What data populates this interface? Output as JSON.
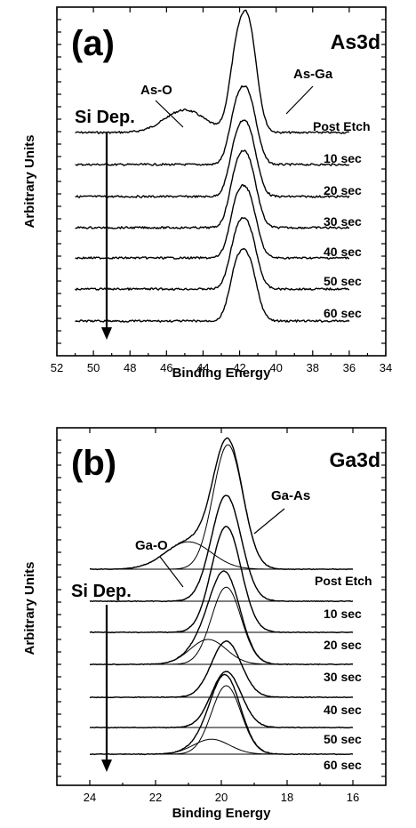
{
  "chart_data": [
    {
      "type": "line",
      "panel_label": "(a)",
      "element_label": "As3d",
      "xlabel": "Binding Energy",
      "ylabel": "Arbitrary Units",
      "xlim": [
        52,
        34
      ],
      "x_ticks": [
        52,
        50,
        48,
        46,
        44,
        42,
        40,
        38,
        36,
        34
      ],
      "grid": false,
      "x_range_data": [
        51,
        36
      ],
      "annotations": [
        {
          "text": "As-O",
          "target_x": 45.0
        },
        {
          "text": "As-Ga",
          "target_x": 41.0
        }
      ],
      "deposition_label": "Si Dep.",
      "series": [
        {
          "name": "Post Etch",
          "peaks": [
            {
              "center": 41.5,
              "height": 1.0,
              "width": 0.45
            },
            {
              "center": 42.2,
              "height": 0.62,
              "width": 0.4
            },
            {
              "center": 45.0,
              "height": 0.22,
              "width": 1.1
            }
          ]
        },
        {
          "name": "10 sec",
          "peaks": [
            {
              "center": 41.5,
              "height": 0.62,
              "width": 0.45
            },
            {
              "center": 42.2,
              "height": 0.45,
              "width": 0.4
            }
          ]
        },
        {
          "name": "20 sec",
          "peaks": [
            {
              "center": 41.5,
              "height": 0.6,
              "width": 0.45
            },
            {
              "center": 42.2,
              "height": 0.44,
              "width": 0.4
            }
          ]
        },
        {
          "name": "30 sec",
          "peaks": [
            {
              "center": 41.5,
              "height": 0.6,
              "width": 0.45
            },
            {
              "center": 42.2,
              "height": 0.45,
              "width": 0.4
            }
          ]
        },
        {
          "name": "40 sec",
          "peaks": [
            {
              "center": 41.5,
              "height": 0.56,
              "width": 0.45
            },
            {
              "center": 42.2,
              "height": 0.43,
              "width": 0.4
            }
          ]
        },
        {
          "name": "50 sec",
          "peaks": [
            {
              "center": 41.5,
              "height": 0.55,
              "width": 0.45
            },
            {
              "center": 42.2,
              "height": 0.42,
              "width": 0.4
            }
          ]
        },
        {
          "name": "60 sec",
          "peaks": [
            {
              "center": 41.5,
              "height": 0.55,
              "width": 0.45
            },
            {
              "center": 42.2,
              "height": 0.43,
              "width": 0.4
            }
          ]
        }
      ]
    },
    {
      "type": "line",
      "panel_label": "(b)",
      "element_label": "Ga3d",
      "xlabel": "Binding Energy",
      "ylabel": "Arbitrary Units",
      "xlim": [
        25,
        15
      ],
      "x_ticks": [
        24,
        22,
        20,
        18,
        16
      ],
      "grid": false,
      "x_range_data": [
        24,
        16
      ],
      "annotations": [
        {
          "text": "Ga-O",
          "target_x": 21.0
        },
        {
          "text": "Ga-As",
          "target_x": 19.6
        }
      ],
      "deposition_label": "Si Dep.",
      "series": [
        {
          "name": "Post Etch",
          "peaks": [
            {
              "center": 19.8,
              "height": 1.0,
              "width": 0.45
            },
            {
              "center": 21.0,
              "height": 0.22,
              "width": 0.7
            }
          ]
        },
        {
          "name": "10 sec",
          "peaks": [
            {
              "center": 19.85,
              "height": 0.85,
              "width": 0.45
            }
          ]
        },
        {
          "name": "20 sec",
          "peaks": [
            {
              "center": 19.85,
              "height": 0.85,
              "width": 0.45
            }
          ]
        },
        {
          "name": "30 sec",
          "peaks": [
            {
              "center": 19.85,
              "height": 0.62,
              "width": 0.45
            },
            {
              "center": 20.4,
              "height": 0.2,
              "width": 0.55
            }
          ]
        },
        {
          "name": "40 sec",
          "peaks": [
            {
              "center": 19.85,
              "height": 0.45,
              "width": 0.45
            }
          ]
        },
        {
          "name": "50 sec",
          "peaks": [
            {
              "center": 19.85,
              "height": 0.45,
              "width": 0.45
            }
          ]
        },
        {
          "name": "60 sec",
          "peaks": [
            {
              "center": 19.85,
              "height": 0.55,
              "width": 0.45
            },
            {
              "center": 20.3,
              "height": 0.12,
              "width": 0.55
            }
          ]
        }
      ]
    }
  ]
}
